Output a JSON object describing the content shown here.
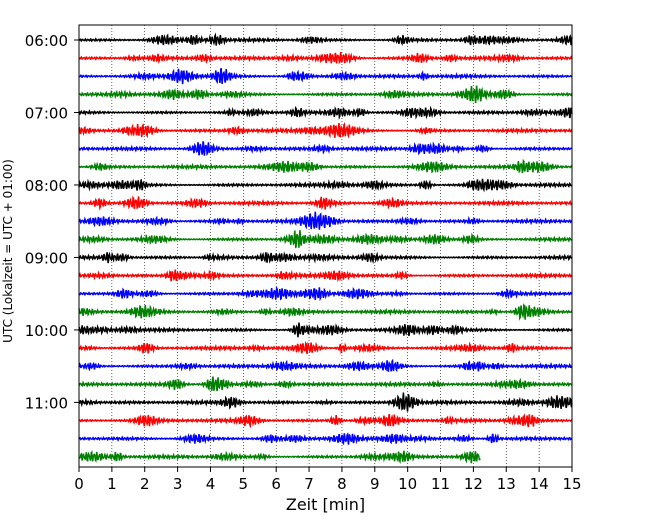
{
  "chart_data": {
    "type": "line",
    "title": "",
    "xlabel": "Zeit  [min]",
    "ylabel": "UTC (Lokalzeit = UTC + 01:00)",
    "xlim": [
      0,
      15
    ],
    "x_ticks": [
      "0",
      "1",
      "2",
      "3",
      "4",
      "5",
      "6",
      "7",
      "8",
      "9",
      "10",
      "11",
      "12",
      "13",
      "14",
      "15"
    ],
    "y_tick_labels": [
      "06:00",
      "07:00",
      "08:00",
      "09:00",
      "10:00",
      "11:00"
    ],
    "grid": "vertical dotted lines at each minute",
    "trace_start": "06:00",
    "trace_interval_min": 15,
    "trace_count": 24,
    "last_trace_end_min": 12.2,
    "trace_colors": [
      "#000000",
      "#ff0000",
      "#0000ff",
      "#008000"
    ]
  }
}
